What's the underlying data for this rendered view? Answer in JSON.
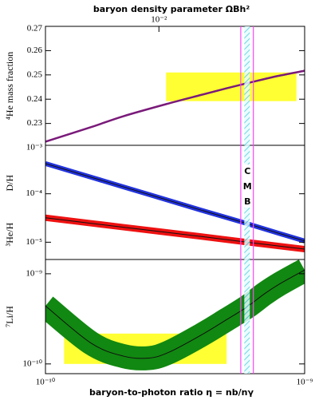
{
  "chart_data": [
    {
      "type": "line",
      "title": "baryon density parameter ΩBh²",
      "x2ticks": [
        {
          "value": 2.74e-10,
          "label": "10⁻²"
        }
      ],
      "xlim": [
        1e-10,
        1e-09
      ],
      "log_x": true,
      "ylim": [
        0.221,
        0.27
      ],
      "yticks": [
        0.23,
        0.24,
        0.25,
        0.26,
        0.27
      ],
      "x": [
        1e-10,
        1.5e-10,
        2e-10,
        3e-10,
        4e-10,
        5e-10,
        6e-10,
        7e-10,
        8e-10,
        1e-09
      ],
      "series": [
        {
          "name": "⁴He mass fraction",
          "color": "#7a1a7a",
          "values": [
            0.2225,
            0.2285,
            0.233,
            0.2383,
            0.2418,
            0.2445,
            0.2466,
            0.2483,
            0.2497,
            0.2517
          ]
        }
      ],
      "regions": [
        {
          "color": "#ffff33",
          "x": [
            2.92e-10,
            9.3e-10
          ],
          "y": [
            0.2392,
            0.251
          ]
        }
      ],
      "band": {
        "x": [
          5.67e-10,
          6.34e-10
        ],
        "color": "#ff44ff",
        "fill": "#55d0e0",
        "annotation": "CMB"
      }
    },
    {
      "type": "line",
      "xlim": [
        1e-10,
        1e-09
      ],
      "log_x": true,
      "log_y": true,
      "ylim": [
        4.4e-06,
        0.001
      ],
      "yticks": [
        {
          "value": 0.001,
          "label": "10⁻³"
        },
        {
          "value": 0.0001,
          "label": "10⁻⁴"
        },
        {
          "value": 1e-05,
          "label": "10⁻⁵"
        }
      ],
      "x": [
        1e-10,
        2e-10,
        4e-10,
        6e-10,
        8e-10,
        1e-09
      ],
      "series": [
        {
          "name": "D/H",
          "color": "#2233dd",
          "values": [
            0.00042,
            0.0001386,
            4.57e-05,
            2.42e-05,
            1.51e-05,
            1.06e-05
          ]
        },
        {
          "name": "³He/H",
          "color": "#ee1111",
          "values": [
            3.2e-05,
            2.04e-05,
            1.31e-05,
            1e-05,
            8.3e-06,
            7.2e-06
          ]
        }
      ]
    },
    {
      "type": "line",
      "xlim": [
        1e-10,
        1e-09
      ],
      "log_x": true,
      "log_y": true,
      "ylim": [
        7.8e-11,
        1.44e-09
      ],
      "yticks": [
        {
          "value": 1e-09,
          "label": "10⁻⁹"
        },
        {
          "value": 1e-10,
          "label": "10⁻¹⁰"
        }
      ],
      "xticks": [
        {
          "value": 1e-10,
          "label": "10⁻¹⁰"
        },
        {
          "value": 1e-09,
          "label": "10⁻⁹"
        }
      ],
      "xlabel": "baryon-to-photon ratio η = nb/nγ",
      "x": [
        1e-10,
        1.5e-10,
        2e-10,
        2.5e-10,
        3e-10,
        4e-10,
        5e-10,
        6e-10,
        7e-10,
        8e-10,
        1e-09
      ],
      "series": [
        {
          "name": "⁷Li/H",
          "color": "#118811",
          "values": [
            4.4e-10,
            1.7e-10,
            1.22e-10,
            1.16e-10,
            1.35e-10,
            2.1e-10,
            3.1e-10,
            4.3e-10,
            6e-10,
            7.7e-10,
            1.1e-09
          ]
        }
      ],
      "regions": [
        {
          "color": "#ffff33",
          "x": [
            1.18e-10,
            5e-10
          ],
          "y": [
            1e-10,
            2.17e-10
          ]
        }
      ]
    }
  ]
}
